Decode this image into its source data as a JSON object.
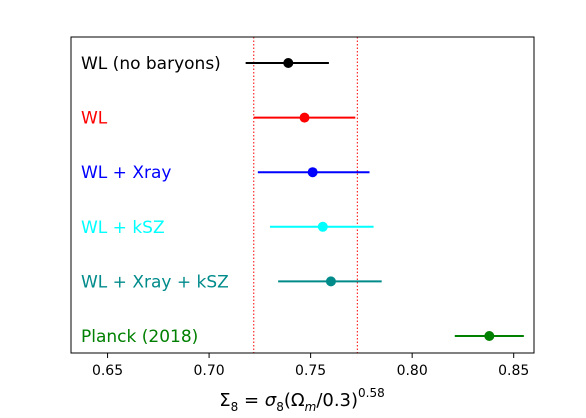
{
  "chart_data": {
    "type": "scatter",
    "subtype": "forest-plot",
    "xlabel": {
      "main": "Σ",
      "main_sub": "8",
      "eq": " = σ",
      "eq_sub": "8",
      "open": "(Ω",
      "omega_sub": "m",
      "close": "/0.3)",
      "power": "0.58"
    },
    "xlim": [
      0.632,
      0.86
    ],
    "xticks": [
      0.65,
      0.7,
      0.75,
      0.8,
      0.85
    ],
    "xtick_labels": [
      "0.65",
      "0.70",
      "0.75",
      "0.80",
      "0.85"
    ],
    "reference_band": [
      0.722,
      0.773
    ],
    "reference_line_color": "#ff0000",
    "grid": false,
    "series": [
      {
        "name": "WL (no baryons)",
        "value": 0.739,
        "low": 0.718,
        "high": 0.759,
        "color": "#000000"
      },
      {
        "name": "WL",
        "value": 0.747,
        "low": 0.722,
        "high": 0.772,
        "color": "#ff0000"
      },
      {
        "name": "WL + Xray",
        "value": 0.751,
        "low": 0.724,
        "high": 0.779,
        "color": "#0000ff"
      },
      {
        "name": "WL + kSZ",
        "value": 0.756,
        "low": 0.73,
        "high": 0.781,
        "color": "#00ffff"
      },
      {
        "name": "WL + Xray + kSZ",
        "value": 0.76,
        "low": 0.734,
        "high": 0.785,
        "color": "#008b8b"
      },
      {
        "name": "Planck (2018)",
        "value": 0.838,
        "low": 0.821,
        "high": 0.855,
        "color": "#008000"
      }
    ]
  }
}
